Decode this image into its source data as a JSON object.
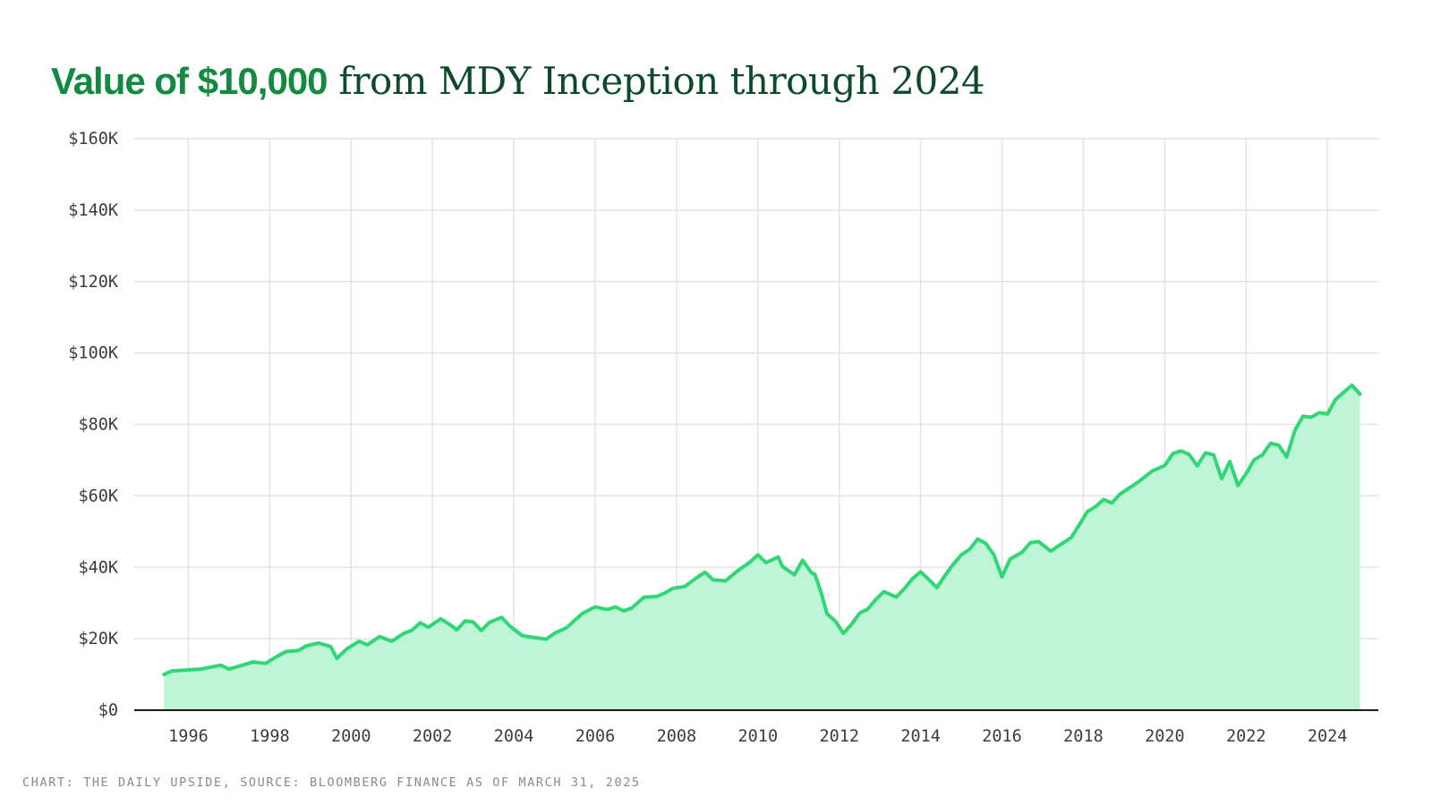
{
  "title": {
    "highlight": "Value of $10,000",
    "rest": " from MDY Inception through 2024"
  },
  "footer": "CHART: THE DAILY UPSIDE, SOURCE: BLOOMBERG FINANCE AS OF MARCH 31, 2025",
  "colors": {
    "line": "#2fd775",
    "area": "#bdf5d6",
    "title_highlight": "#138a3f",
    "title_rest": "#0d4a2c"
  },
  "chart_data": {
    "type": "area",
    "title": "Value of $10,000 from MDY Inception through 2024",
    "xlabel": "",
    "ylabel": "",
    "xlim": [
      1994.67,
      2025.25
    ],
    "ylim": [
      0,
      160000
    ],
    "x_ticks": [
      1996,
      1998,
      2000,
      2002,
      2004,
      2006,
      2008,
      2010,
      2012,
      2014,
      2016,
      2018,
      2020,
      2022,
      2024
    ],
    "x_tick_labels": [
      "1996",
      "1998",
      "2000",
      "2002",
      "2004",
      "2006",
      "2008",
      "2010",
      "2012",
      "2014",
      "2016",
      "2018",
      "2020",
      "2022",
      "2024"
    ],
    "y_ticks": [
      0,
      20000,
      40000,
      60000,
      80000,
      100000,
      120000,
      140000,
      160000
    ],
    "y_tick_labels": [
      "$0",
      "$20K",
      "$40K",
      "$60K",
      "$80K",
      "$100K",
      "$120K",
      "$140K",
      "$160K"
    ],
    "grid": true,
    "legend": "none",
    "series": [
      {
        "values": [
          [
            1995.4,
            10000
          ],
          [
            1995.6,
            11000
          ],
          [
            1995.9,
            11200
          ],
          [
            1996.3,
            11500
          ],
          [
            1996.8,
            12600
          ],
          [
            1997.0,
            11500
          ],
          [
            1997.3,
            12500
          ],
          [
            1997.6,
            13500
          ],
          [
            1997.9,
            13100
          ],
          [
            1998.2,
            15200
          ],
          [
            1998.4,
            16400
          ],
          [
            1998.7,
            16700
          ],
          [
            1998.9,
            18000
          ],
          [
            1999.2,
            18800
          ],
          [
            1999.5,
            17800
          ],
          [
            1999.65,
            14500
          ],
          [
            1999.9,
            17200
          ],
          [
            2000.2,
            19300
          ],
          [
            2000.4,
            18300
          ],
          [
            2000.7,
            20600
          ],
          [
            2001.0,
            19300
          ],
          [
            2001.3,
            21500
          ],
          [
            2001.5,
            22400
          ],
          [
            2001.7,
            24500
          ],
          [
            2001.9,
            23200
          ],
          [
            2002.2,
            25600
          ],
          [
            2002.4,
            24200
          ],
          [
            2002.6,
            22500
          ],
          [
            2002.8,
            25000
          ],
          [
            2003.0,
            24700
          ],
          [
            2003.2,
            22300
          ],
          [
            2003.4,
            24600
          ],
          [
            2003.7,
            26000
          ],
          [
            2003.9,
            23600
          ],
          [
            2004.2,
            20900
          ],
          [
            2004.5,
            20300
          ],
          [
            2004.8,
            19900
          ],
          [
            2005.0,
            21500
          ],
          [
            2005.3,
            23100
          ],
          [
            2005.5,
            25200
          ],
          [
            2005.7,
            27200
          ],
          [
            2006.0,
            28900
          ],
          [
            2006.3,
            28200
          ],
          [
            2006.5,
            28900
          ],
          [
            2006.7,
            27800
          ],
          [
            2006.9,
            28600
          ],
          [
            2007.2,
            31600
          ],
          [
            2007.5,
            31800
          ],
          [
            2007.7,
            32700
          ],
          [
            2007.9,
            34100
          ],
          [
            2008.2,
            34600
          ],
          [
            2008.5,
            37100
          ],
          [
            2008.7,
            38600
          ],
          [
            2008.9,
            36500
          ],
          [
            2009.2,
            36200
          ],
          [
            2009.5,
            39000
          ],
          [
            2009.8,
            41400
          ],
          [
            2010.0,
            43500
          ],
          [
            2010.2,
            41300
          ],
          [
            2010.5,
            42900
          ],
          [
            2010.6,
            40300
          ],
          [
            2010.9,
            37900
          ],
          [
            2011.1,
            42000
          ],
          [
            2011.3,
            38700
          ],
          [
            2011.4,
            38000
          ],
          [
            2011.55,
            33000
          ],
          [
            2011.7,
            27000
          ],
          [
            2011.9,
            25000
          ],
          [
            2012.1,
            21500
          ],
          [
            2012.3,
            24000
          ],
          [
            2012.5,
            27200
          ],
          [
            2012.7,
            28300
          ],
          [
            2012.9,
            31000
          ],
          [
            2013.1,
            33200
          ],
          [
            2013.4,
            31700
          ],
          [
            2013.6,
            34000
          ],
          [
            2013.8,
            36800
          ],
          [
            2014.0,
            38700
          ],
          [
            2014.2,
            36600
          ],
          [
            2014.4,
            34300
          ],
          [
            2014.6,
            37700
          ],
          [
            2014.8,
            40800
          ],
          [
            2015.0,
            43500
          ],
          [
            2015.2,
            45000
          ],
          [
            2015.4,
            47900
          ],
          [
            2015.6,
            46700
          ],
          [
            2015.8,
            43500
          ],
          [
            2016.0,
            37300
          ],
          [
            2016.2,
            42300
          ],
          [
            2016.5,
            44300
          ],
          [
            2016.7,
            46900
          ],
          [
            2016.9,
            47200
          ],
          [
            2017.2,
            44500
          ],
          [
            2017.4,
            46100
          ],
          [
            2017.7,
            48300
          ],
          [
            2017.9,
            51900
          ],
          [
            2018.1,
            55600
          ],
          [
            2018.3,
            57000
          ],
          [
            2018.5,
            59000
          ],
          [
            2018.7,
            58000
          ],
          [
            2018.9,
            60500
          ],
          [
            2019.1,
            62000
          ],
          [
            2019.3,
            63500
          ],
          [
            2019.5,
            65200
          ],
          [
            2019.7,
            67000
          ],
          [
            2020.0,
            68500
          ],
          [
            2020.2,
            71800
          ],
          [
            2020.4,
            72600
          ],
          [
            2020.6,
            71600
          ],
          [
            2020.8,
            68400
          ],
          [
            2021.0,
            72000
          ],
          [
            2021.2,
            71500
          ],
          [
            2021.4,
            64800
          ],
          [
            2021.6,
            69600
          ],
          [
            2021.8,
            62900
          ],
          [
            2022.0,
            66200
          ],
          [
            2022.2,
            70100
          ],
          [
            2022.4,
            71400
          ],
          [
            2022.6,
            74700
          ],
          [
            2022.8,
            74200
          ],
          [
            2023.0,
            70900
          ],
          [
            2023.2,
            78300
          ],
          [
            2023.4,
            82300
          ],
          [
            2023.6,
            82000
          ],
          [
            2023.8,
            83300
          ],
          [
            2024.0,
            82900
          ],
          [
            2024.2,
            87000
          ],
          [
            2024.4,
            89000
          ],
          [
            2024.6,
            91000
          ],
          [
            2024.8,
            88500
          ]
        ]
      }
    ]
  }
}
